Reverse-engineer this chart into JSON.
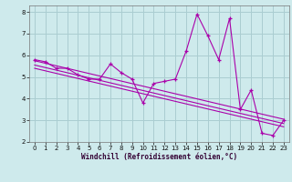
{
  "xlabel": "Windchill (Refroidissement éolien,°C)",
  "bg_color": "#ceeaec",
  "grid_color": "#aacdd1",
  "line_color": "#aa00aa",
  "marker_color": "#aa00aa",
  "xlim": [
    -0.5,
    23.5
  ],
  "ylim": [
    2.0,
    8.3
  ],
  "yticks": [
    2,
    3,
    4,
    5,
    6,
    7,
    8
  ],
  "xticks": [
    0,
    1,
    2,
    3,
    4,
    5,
    6,
    7,
    8,
    9,
    10,
    11,
    12,
    13,
    14,
    15,
    16,
    17,
    18,
    19,
    20,
    21,
    22,
    23
  ],
  "series": [
    [
      0,
      5.8
    ],
    [
      1,
      5.7
    ],
    [
      2,
      5.4
    ],
    [
      3,
      5.4
    ],
    [
      4,
      5.1
    ],
    [
      5,
      4.9
    ],
    [
      6,
      4.9
    ],
    [
      7,
      5.6
    ],
    [
      8,
      5.2
    ],
    [
      9,
      4.9
    ],
    [
      10,
      3.8
    ],
    [
      11,
      4.7
    ],
    [
      12,
      4.8
    ],
    [
      13,
      4.9
    ],
    [
      14,
      6.2
    ],
    [
      15,
      7.9
    ],
    [
      16,
      6.9
    ],
    [
      17,
      5.8
    ],
    [
      18,
      7.7
    ],
    [
      19,
      3.5
    ],
    [
      20,
      4.4
    ],
    [
      21,
      2.4
    ],
    [
      22,
      2.3
    ],
    [
      23,
      3.0
    ]
  ],
  "trend_series": [
    [
      0,
      5.75
    ],
    [
      23,
      3.05
    ]
  ],
  "trend2_series": [
    [
      0,
      5.55
    ],
    [
      23,
      2.85
    ]
  ],
  "trend3_series": [
    [
      0,
      5.4
    ],
    [
      23,
      2.7
    ]
  ]
}
